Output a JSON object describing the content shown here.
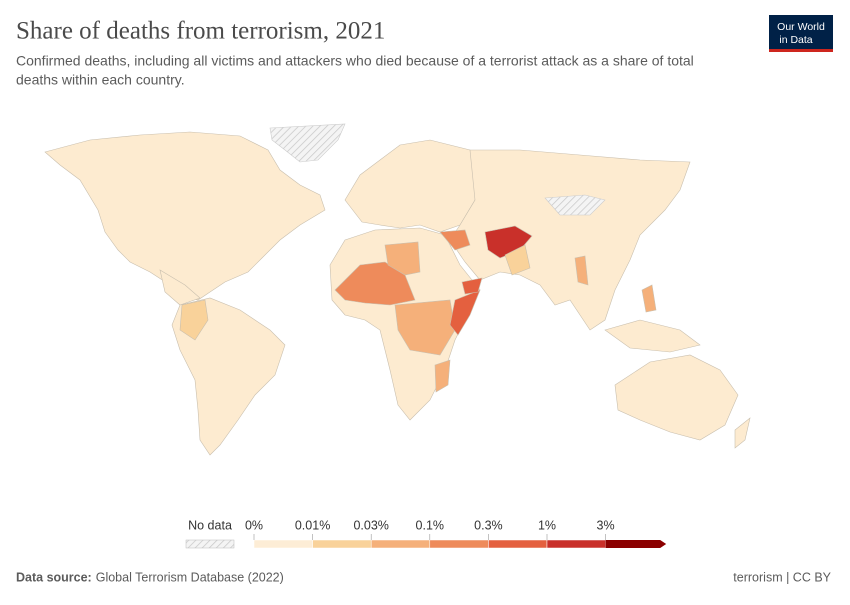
{
  "header": {
    "title": "Share of deaths from terrorism, 2021",
    "subtitle_line1": "Confirmed deaths, including all victims and attackers who died because of a terrorist attack as a share of total",
    "subtitle_line2": "deaths within each country.",
    "logo_line1": "Our World",
    "logo_line2": "in Data"
  },
  "legend": {
    "no_data": "No data",
    "ticks": [
      "0%",
      "0.01%",
      "0.03%",
      "0.1%",
      "0.3%",
      "1%",
      "3%"
    ],
    "colors": [
      "#fdedd6",
      "#f9d29a",
      "#f5b07a",
      "#ee8b5b",
      "#e4603f",
      "#c9302a",
      "#8b0000"
    ]
  },
  "footer": {
    "source_label": "Data source:",
    "source": "Global Terrorism Database (2022)",
    "right": "terrorism | CC BY"
  }
}
